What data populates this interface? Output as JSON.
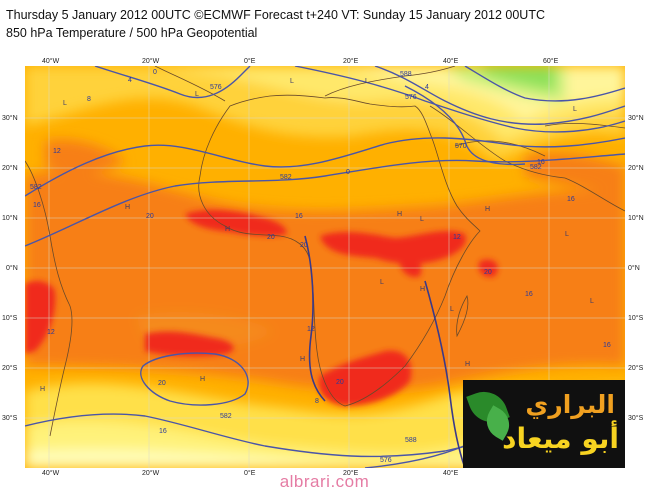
{
  "header": {
    "line1": "Thursday 5 January 2012 00UTC ©ECMWF Forecast t+240 VT: Sunday 15 January 2012 00UTC",
    "line2": "850 hPa Temperature / 500 hPa Geopotential"
  },
  "axes": {
    "lon_ticks": [
      "40°W",
      "20°W",
      "0°E",
      "20°E",
      "40°E",
      "60°E"
    ],
    "lat_ticks": [
      "30°N",
      "20°N",
      "10°N",
      "0°N",
      "10°S",
      "20°S",
      "30°S"
    ]
  },
  "colors": {
    "ocean_land_base": "#ffb000",
    "warm_orange": "#f77f16",
    "hot_red": "#f02a1e",
    "mild_yellow": "#ffe04a",
    "cool_yellow": "#fff59a",
    "green": "#b0f080",
    "contour": "#4a55a8"
  },
  "contour_labels": [
    "588",
    "576",
    "576",
    "570",
    "582",
    "582",
    "582",
    "582",
    "588",
    "576"
  ],
  "temperature_labels": [
    "0",
    "4",
    "8",
    "4",
    "0",
    "12",
    "16",
    "20",
    "20",
    "20",
    "20",
    "16",
    "16",
    "12",
    "12",
    "16",
    "20",
    "20",
    "8",
    "16",
    "16",
    "12",
    "16"
  ],
  "pressure_centers": [
    "L",
    "L",
    "L",
    "H",
    "H",
    "H",
    "L",
    "H",
    "L",
    "L",
    "H",
    "L",
    "L",
    "H",
    "H",
    "L",
    "H",
    "H",
    "L"
  ],
  "logo": {
    "line1": "البراري",
    "line2": "أبو ميعاد"
  },
  "footer": {
    "site": "albrari.com"
  }
}
